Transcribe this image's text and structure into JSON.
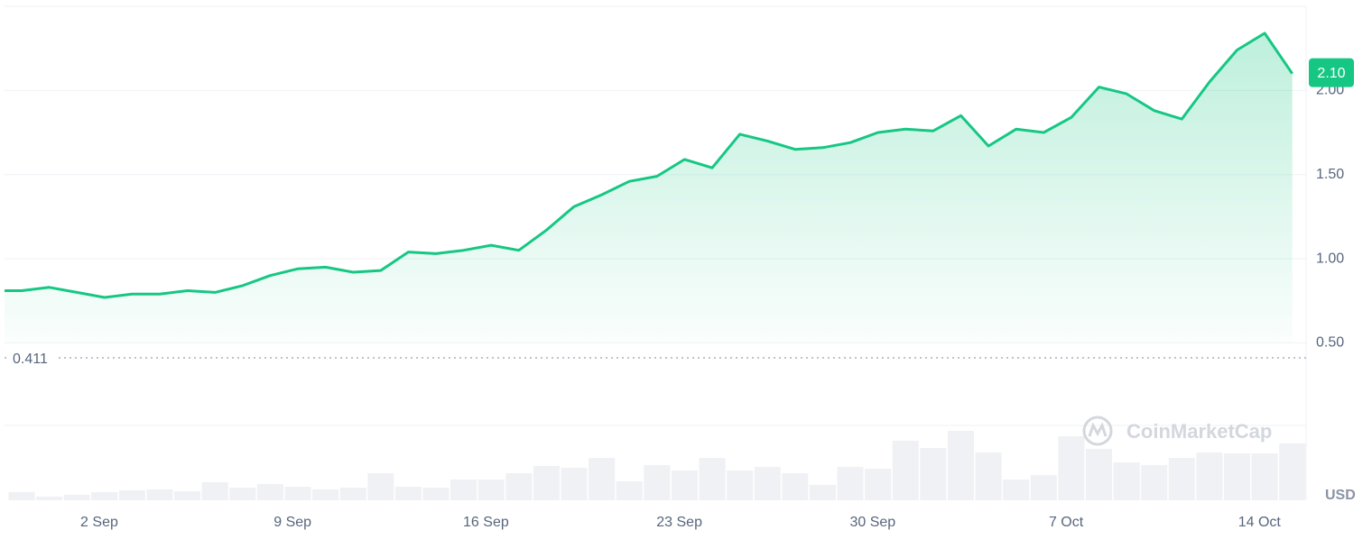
{
  "chart_data": [
    {
      "type": "line",
      "color": "#16c784",
      "x": [
        -0.62,
        0,
        1,
        2,
        3,
        4,
        5,
        6,
        7,
        8,
        9,
        10,
        11,
        12,
        13,
        14,
        15,
        16,
        17,
        18,
        19,
        20,
        21,
        22,
        23,
        24,
        25,
        26,
        27,
        28,
        29,
        30,
        31,
        32,
        33,
        34,
        35,
        36,
        37,
        38,
        39,
        40,
        41,
        42,
        43,
        44,
        45,
        46
      ],
      "values": [
        0.81,
        0.81,
        0.83,
        0.8,
        0.77,
        0.79,
        0.79,
        0.81,
        0.8,
        0.84,
        0.9,
        0.94,
        0.95,
        0.92,
        0.93,
        1.04,
        1.03,
        1.05,
        1.08,
        1.05,
        1.17,
        1.31,
        1.38,
        1.46,
        1.49,
        1.59,
        1.54,
        1.74,
        1.7,
        1.65,
        1.66,
        1.69,
        1.75,
        1.77,
        1.76,
        1.85,
        1.67,
        1.77,
        1.75,
        1.84,
        2.02,
        1.98,
        1.88,
        1.83,
        2.05,
        2.24,
        2.34,
        2.1
      ],
      "xlim": [
        -0.62,
        46.5
      ],
      "xticks": [
        {
          "value": 2.81,
          "label": "2 Sep"
        },
        {
          "value": 9.81,
          "label": "9 Sep"
        },
        {
          "value": 16.81,
          "label": "16 Sep"
        },
        {
          "value": 23.81,
          "label": "23 Sep"
        },
        {
          "value": 30.81,
          "label": "30 Sep"
        },
        {
          "value": 37.81,
          "label": "7 Oct"
        },
        {
          "value": 44.81,
          "label": "14 Oct"
        }
      ],
      "ylim": [
        0.411,
        2.5
      ],
      "yticks": [
        {
          "value": 0.5,
          "label": "0.50"
        },
        {
          "value": 1,
          "label": "1.00"
        },
        {
          "value": 1.5,
          "label": "1.50"
        },
        {
          "value": 2,
          "label": "2.00"
        }
      ],
      "reference_line": {
        "value": 0.411,
        "label": "0.411"
      },
      "current_price": {
        "value": 2.1,
        "label": "2.10"
      },
      "unit": "USD",
      "watermark": "CoinMarketCap",
      "grid": true
    },
    {
      "type": "bar",
      "color": "#eff1f4",
      "x": [
        0,
        1,
        2,
        3,
        4,
        5,
        6,
        7,
        8,
        9,
        10,
        11,
        12,
        13,
        14,
        15,
        16,
        17,
        18,
        19,
        20,
        21,
        22,
        23,
        24,
        25,
        26,
        27,
        28,
        29,
        30,
        31,
        32,
        33,
        34,
        35,
        36,
        37,
        38,
        39,
        40,
        41,
        42,
        43,
        44,
        45,
        46
      ],
      "values": [
        9,
        4,
        6,
        9,
        11,
        12,
        10,
        20,
        14,
        18,
        15,
        12,
        14,
        30,
        15,
        14,
        23,
        23,
        30,
        38,
        36,
        47,
        21,
        39,
        33,
        47,
        33,
        37,
        30,
        17,
        37,
        35,
        66,
        58,
        77,
        53,
        23,
        28,
        71,
        57,
        42,
        39,
        47,
        53,
        52,
        52,
        63
      ],
      "xlim": [
        -0.62,
        46.5
      ],
      "ylim": [
        0,
        83
      ]
    }
  ]
}
